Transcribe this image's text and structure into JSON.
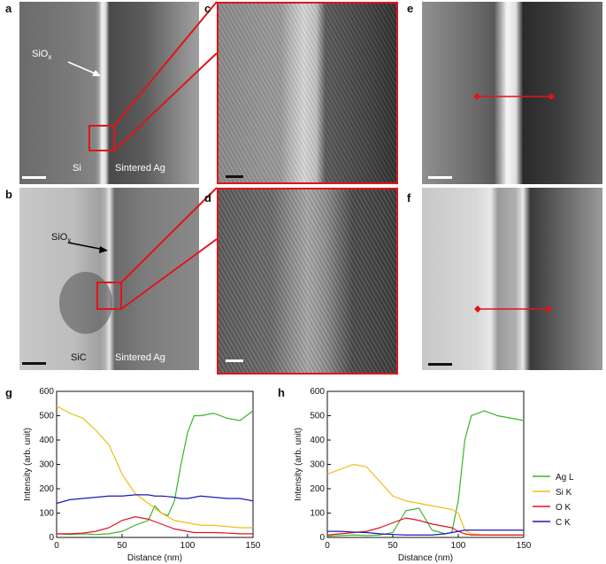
{
  "panels": {
    "a": {
      "letter": "a",
      "annot": "SiOx",
      "material_left": "Si",
      "material_right": "Sintered Ag"
    },
    "b": {
      "letter": "b",
      "annot": "SiOx",
      "material_left": "SiC",
      "material_right": "Sintered Ag"
    },
    "c": {
      "letter": "c"
    },
    "d": {
      "letter": "d"
    },
    "e": {
      "letter": "e"
    },
    "f": {
      "letter": "f"
    },
    "g": {
      "letter": "g"
    },
    "h": {
      "letter": "h"
    }
  },
  "colors": {
    "Ag L": "#39b529",
    "Si K": "#f2bb1a",
    "O K": "#e0141a",
    "C K": "#1a1ab8",
    "highlight": "#e0141a"
  },
  "chart_data": [
    {
      "type": "line",
      "panel": "g",
      "xlabel": "Distance (nm)",
      "ylabel": "Intensity (arb. unit)",
      "xlim": [
        0,
        150
      ],
      "ylim": [
        0,
        600
      ],
      "xticks": [
        0,
        50,
        100,
        150
      ],
      "yticks": [
        0,
        100,
        200,
        300,
        400,
        500,
        600
      ],
      "x": [
        0,
        10,
        20,
        30,
        40,
        50,
        60,
        70,
        75,
        80,
        85,
        90,
        95,
        100,
        105,
        110,
        120,
        130,
        140,
        150
      ],
      "series": [
        {
          "name": "Ag L",
          "values": [
            15,
            12,
            15,
            12,
            15,
            25,
            50,
            70,
            130,
            100,
            90,
            150,
            300,
            430,
            500,
            500,
            510,
            490,
            480,
            520
          ]
        },
        {
          "name": "Si K",
          "values": [
            540,
            510,
            490,
            440,
            380,
            260,
            180,
            140,
            120,
            100,
            85,
            70,
            65,
            60,
            55,
            50,
            50,
            45,
            40,
            40
          ]
        },
        {
          "name": "O K",
          "values": [
            15,
            15,
            18,
            25,
            40,
            70,
            85,
            75,
            65,
            55,
            45,
            35,
            30,
            25,
            20,
            20,
            20,
            18,
            15,
            15
          ]
        },
        {
          "name": "C K",
          "values": [
            140,
            155,
            160,
            165,
            170,
            170,
            175,
            175,
            170,
            170,
            168,
            165,
            160,
            160,
            165,
            170,
            165,
            160,
            160,
            150
          ]
        }
      ]
    },
    {
      "type": "line",
      "panel": "h",
      "xlabel": "Distance (nm)",
      "ylabel": "Intensity (arb. unit)",
      "xlim": [
        0,
        150
      ],
      "ylim": [
        0,
        600
      ],
      "xticks": [
        0,
        50,
        100,
        150
      ],
      "yticks": [
        0,
        100,
        200,
        300,
        400,
        500,
        600
      ],
      "x": [
        0,
        10,
        20,
        30,
        40,
        50,
        60,
        70,
        80,
        90,
        95,
        100,
        105,
        110,
        120,
        130,
        140,
        150
      ],
      "series": [
        {
          "name": "Ag L",
          "values": [
            5,
            8,
            10,
            8,
            10,
            20,
            110,
            120,
            30,
            15,
            20,
            150,
            400,
            500,
            520,
            500,
            490,
            480
          ]
        },
        {
          "name": "Si K",
          "values": [
            260,
            280,
            300,
            290,
            230,
            170,
            150,
            140,
            130,
            120,
            115,
            100,
            30,
            15,
            10,
            10,
            10,
            10
          ]
        },
        {
          "name": "O K",
          "values": [
            10,
            15,
            20,
            25,
            40,
            60,
            80,
            70,
            55,
            45,
            40,
            25,
            15,
            10,
            10,
            10,
            10,
            10
          ]
        },
        {
          "name": "C K",
          "values": [
            25,
            25,
            22,
            20,
            15,
            12,
            10,
            10,
            10,
            15,
            20,
            25,
            30,
            30,
            30,
            30,
            30,
            30
          ]
        }
      ]
    }
  ],
  "legend": [
    "Ag L",
    "Si K",
    "O K",
    "C K"
  ]
}
